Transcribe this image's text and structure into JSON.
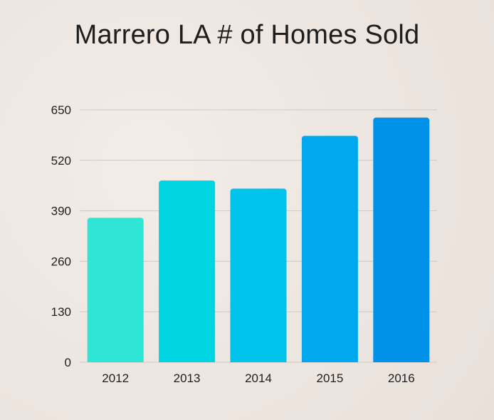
{
  "chart_data": {
    "type": "bar",
    "title": "Marrero LA # of Homes Sold",
    "categories": [
      "2012",
      "2013",
      "2014",
      "2015",
      "2016"
    ],
    "values": [
      372,
      468,
      447,
      583,
      630
    ],
    "colors": [
      "#2ee5d6",
      "#00d5e3",
      "#00c2ea",
      "#00a9ef",
      "#0091e8"
    ],
    "xlabel": "",
    "ylabel": "",
    "ylim": [
      0,
      650
    ],
    "yticks": [
      "0",
      "130",
      "260",
      "390",
      "520",
      "650"
    ],
    "grid": true,
    "gridline_color": "#cfc8c3",
    "legend": "none"
  }
}
